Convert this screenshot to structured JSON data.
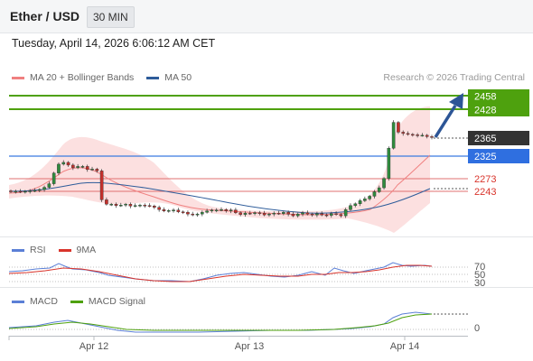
{
  "header": {
    "title": "Ether / USD",
    "timeframe": "30 MIN",
    "datetime": "Tuesday, April 14, 2026 6:06:12 AM CET"
  },
  "legend": [
    {
      "label": "MA 20 + Bollinger Bands",
      "color": "#f08080"
    },
    {
      "label": "MA 50",
      "color": "#2e5c9a"
    }
  ],
  "credit": "Research © 2026 Trading Central",
  "colors": {
    "resistance": "#4ea10e",
    "current": "#333333",
    "pivot": "#3a7be0",
    "support": "#d9342b",
    "arrow": "#2c5596"
  },
  "price_levels": [
    {
      "value": "2458",
      "kind": "resistance"
    },
    {
      "value": "2428",
      "kind": "resistance"
    },
    {
      "value": "2365",
      "kind": "current"
    },
    {
      "value": "2325",
      "kind": "pivot"
    },
    {
      "value": "2273",
      "kind": "support"
    },
    {
      "value": "2243",
      "kind": "support"
    }
  ],
  "rsi_panel": {
    "legend": [
      {
        "label": "RSI",
        "color": "#5b7fd6"
      },
      {
        "label": "9MA",
        "color": "#d9342b"
      }
    ],
    "levels": [
      "70",
      "50",
      "30"
    ]
  },
  "macd_panel": {
    "legend": [
      {
        "label": "MACD",
        "color": "#5b7fd6"
      },
      {
        "label": "MACD Signal",
        "color": "#4ea10e"
      }
    ],
    "levels": [
      "0"
    ]
  },
  "x_axis": [
    "Apr 12",
    "Apr 13",
    "Apr 14"
  ],
  "chart_data": {
    "type": "candlestick",
    "price_axis_labels": [
      "2458",
      "2428",
      "2365",
      "2325",
      "2273",
      "2243"
    ],
    "close_series": [
      2243,
      2243,
      2242,
      2243,
      2244,
      2245,
      2247,
      2252,
      2260,
      2284,
      2304,
      2308,
      2302,
      2296,
      2299,
      2299,
      2292,
      2293,
      2289,
      2224,
      2214,
      2214,
      2211,
      2212,
      2214,
      2210,
      2211,
      2212,
      2211,
      2210,
      2207,
      2202,
      2199,
      2200,
      2201,
      2197,
      2196,
      2192,
      2190,
      2192,
      2196,
      2199,
      2201,
      2201,
      2202,
      2199,
      2201,
      2195,
      2191,
      2194,
      2193,
      2195,
      2194,
      2190,
      2192,
      2194,
      2193,
      2196,
      2192,
      2188,
      2192,
      2195,
      2192,
      2190,
      2193,
      2190,
      2189,
      2193,
      2191,
      2188,
      2202,
      2211,
      2215,
      2222,
      2226,
      2232,
      2242,
      2251,
      2272,
      2340,
      2398,
      2376,
      2373,
      2371,
      2370,
      2369,
      2369,
      2366,
      2365
    ],
    "x_ticks": [
      "Apr 12",
      "Apr 13",
      "Apr 14"
    ],
    "indicators": [
      "MA 20 + Bollinger Bands",
      "MA 50",
      "RSI",
      "9MA",
      "MACD",
      "MACD Signal"
    ]
  }
}
